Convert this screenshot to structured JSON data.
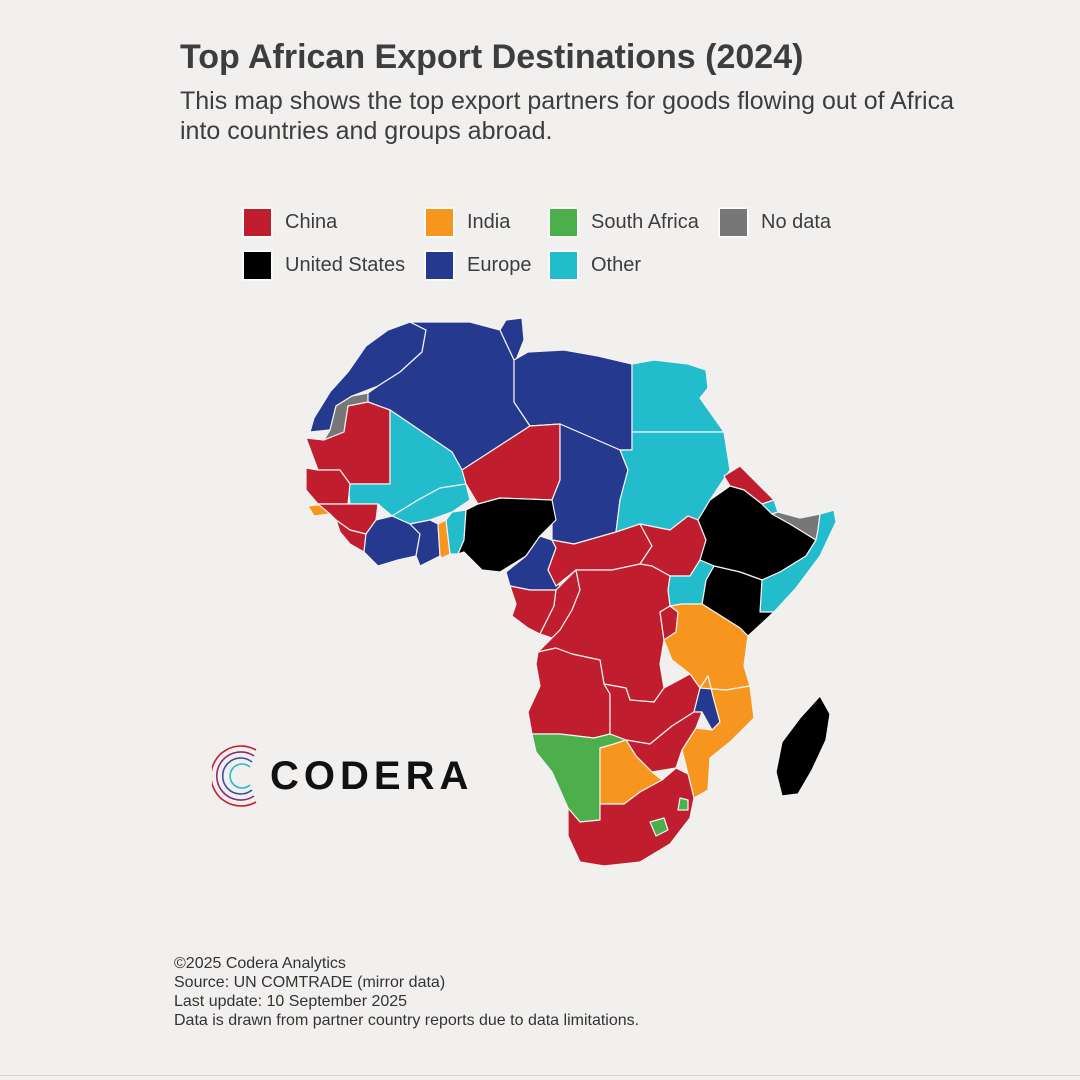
{
  "header": {
    "title": "Top African Export Destinations (2024)",
    "subtitle": "This map shows the top export partners for goods flowing out of Africa into countries and groups abroad."
  },
  "legend": {
    "items": [
      {
        "key": "china",
        "label": "China",
        "color": "#c01e2f"
      },
      {
        "key": "india",
        "label": "India",
        "color": "#f7961f"
      },
      {
        "key": "south_africa",
        "label": "South Africa",
        "color": "#4caf4c"
      },
      {
        "key": "no_data",
        "label": "No data",
        "color": "#777777"
      },
      {
        "key": "united_states",
        "label": "United States",
        "color": "#000000"
      },
      {
        "key": "europe",
        "label": "Europe",
        "color": "#253a8e"
      },
      {
        "key": "other",
        "label": "Other",
        "color": "#22bccc"
      }
    ]
  },
  "map_regions": [
    {
      "region": "morocco",
      "category": "europe"
    },
    {
      "region": "western-sahara",
      "category": "no_data"
    },
    {
      "region": "algeria",
      "category": "europe"
    },
    {
      "region": "tunisia",
      "category": "europe"
    },
    {
      "region": "libya",
      "category": "europe"
    },
    {
      "region": "egypt",
      "category": "other"
    },
    {
      "region": "mauritania",
      "category": "china"
    },
    {
      "region": "mali",
      "category": "other"
    },
    {
      "region": "niger",
      "category": "china"
    },
    {
      "region": "chad",
      "category": "europe"
    },
    {
      "region": "sudan",
      "category": "other"
    },
    {
      "region": "eritrea",
      "category": "china"
    },
    {
      "region": "senegal-gambia",
      "category": "china"
    },
    {
      "region": "guinea-bissau",
      "category": "india"
    },
    {
      "region": "guinea-sierra-leone",
      "category": "china"
    },
    {
      "region": "liberia",
      "category": "china"
    },
    {
      "region": "burkina-faso",
      "category": "other"
    },
    {
      "region": "cote-divoire",
      "category": "europe"
    },
    {
      "region": "ghana",
      "category": "europe"
    },
    {
      "region": "togo",
      "category": "india"
    },
    {
      "region": "benin",
      "category": "other"
    },
    {
      "region": "nigeria",
      "category": "united_states"
    },
    {
      "region": "cameroon",
      "category": "europe"
    },
    {
      "region": "central-african-republic",
      "category": "china"
    },
    {
      "region": "south-sudan",
      "category": "china"
    },
    {
      "region": "ethiopia",
      "category": "united_states"
    },
    {
      "region": "djibouti",
      "category": "other"
    },
    {
      "region": "somaliland",
      "category": "no_data"
    },
    {
      "region": "somalia",
      "category": "other"
    },
    {
      "region": "kenya",
      "category": "united_states"
    },
    {
      "region": "uganda",
      "category": "other"
    },
    {
      "region": "equatorial-guinea-gabon",
      "category": "china"
    },
    {
      "region": "congo",
      "category": "china"
    },
    {
      "region": "dr-congo",
      "category": "china"
    },
    {
      "region": "rwanda-burundi",
      "category": "china"
    },
    {
      "region": "tanzania",
      "category": "india"
    },
    {
      "region": "angola",
      "category": "china"
    },
    {
      "region": "zambia",
      "category": "china"
    },
    {
      "region": "malawi",
      "category": "europe"
    },
    {
      "region": "mozambique",
      "category": "india"
    },
    {
      "region": "zimbabwe",
      "category": "china"
    },
    {
      "region": "namibia",
      "category": "south_africa"
    },
    {
      "region": "botswana",
      "category": "india"
    },
    {
      "region": "south-africa",
      "category": "china"
    },
    {
      "region": "eswatini",
      "category": "south_africa"
    },
    {
      "region": "lesotho",
      "category": "south_africa"
    },
    {
      "region": "madagascar",
      "category": "united_states"
    }
  ],
  "logo": {
    "text": "CODERA"
  },
  "footer": {
    "copyright": "©2025 Codera Analytics",
    "source": "Source: UN COMTRADE (mirror data)",
    "updated": "Last update: 10 September 2025",
    "note": "Data is drawn from partner country reports due to data limitations."
  }
}
